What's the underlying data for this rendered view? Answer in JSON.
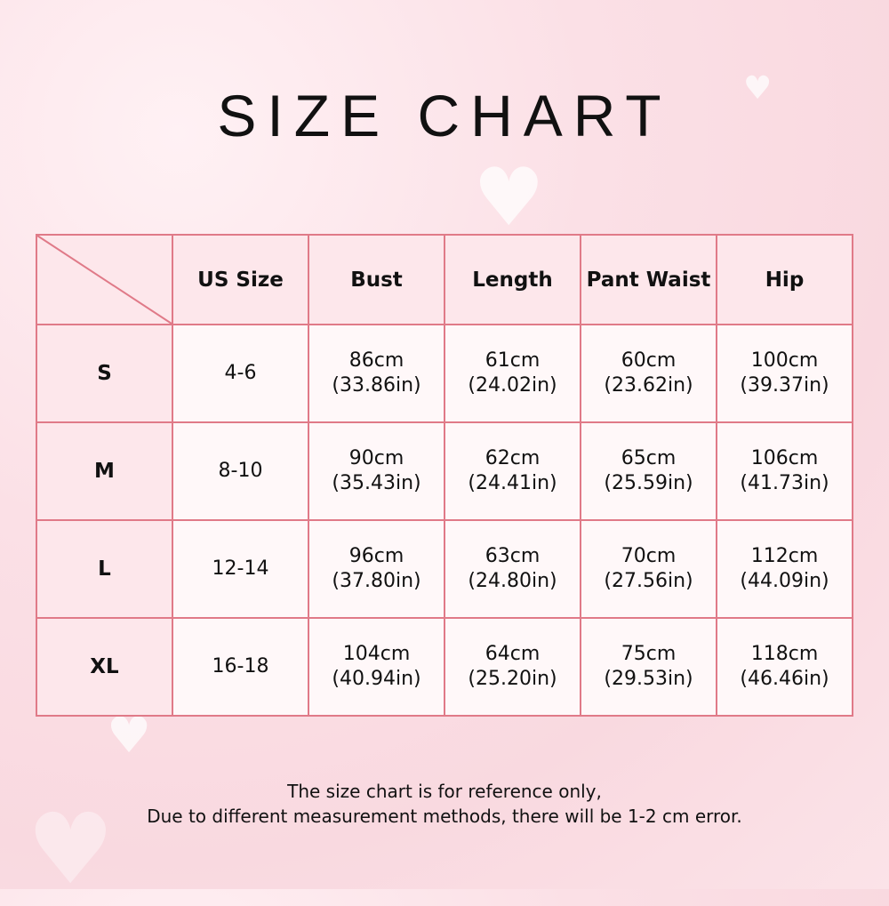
{
  "title": "SIZE CHART",
  "colors": {
    "border": "#e07a88",
    "header_bg": "#fde7eb",
    "cell_bg": "#fff8f9"
  },
  "table": {
    "headers": [
      "US Size",
      "Bust",
      "Length",
      "Pant Waist",
      "Hip"
    ],
    "rows": [
      {
        "size": "S",
        "cells": [
          [
            "4-6",
            ""
          ],
          [
            "86cm",
            "(33.86in)"
          ],
          [
            "61cm",
            "(24.02in)"
          ],
          [
            "60cm",
            "(23.62in)"
          ],
          [
            "100cm",
            "(39.37in)"
          ]
        ]
      },
      {
        "size": "M",
        "cells": [
          [
            "8-10",
            ""
          ],
          [
            "90cm",
            "(35.43in)"
          ],
          [
            "62cm",
            "(24.41in)"
          ],
          [
            "65cm",
            "(25.59in)"
          ],
          [
            "106cm",
            "(41.73in)"
          ]
        ]
      },
      {
        "size": "L",
        "cells": [
          [
            "12-14",
            ""
          ],
          [
            "96cm",
            "(37.80in)"
          ],
          [
            "63cm",
            "(24.80in)"
          ],
          [
            "70cm",
            "(27.56in)"
          ],
          [
            "112cm",
            "(44.09in)"
          ]
        ]
      },
      {
        "size": "XL",
        "cells": [
          [
            "16-18",
            ""
          ],
          [
            "104cm",
            "(40.94in)"
          ],
          [
            "64cm",
            "(25.20in)"
          ],
          [
            "75cm",
            "(29.53in)"
          ],
          [
            "118cm",
            "(46.46in)"
          ]
        ]
      }
    ]
  },
  "note": {
    "line1": "The size chart is for reference only,",
    "line2": "Due to different measurement methods, there will be 1-2 cm error."
  },
  "decor": {
    "icon": "heart-icon"
  }
}
